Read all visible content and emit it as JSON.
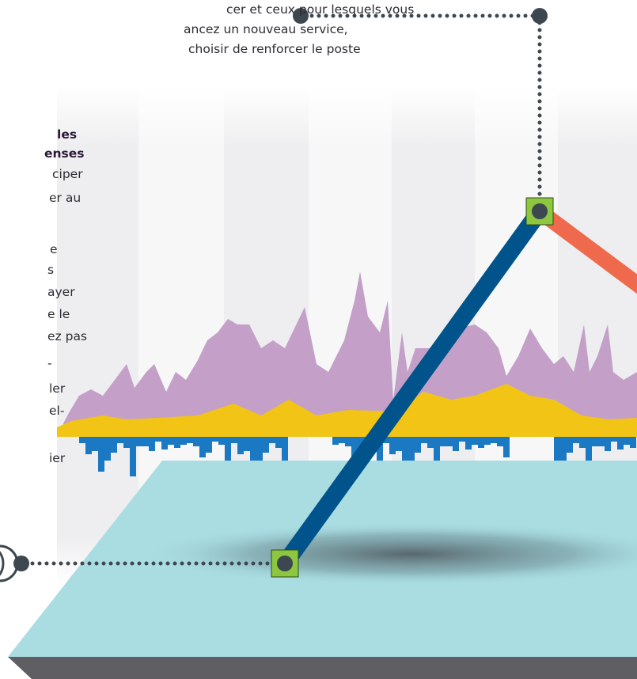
{
  "intro": {
    "lines": [
      "cer et ceux pour lesquels vous",
      "ancez un nouveau service,",
      "choisir de renforcer le poste"
    ]
  },
  "section": {
    "heading": [
      "les",
      "enses"
    ],
    "lines": [
      "ciper",
      "er au",
      "e",
      "s",
      "ayer",
      "e le",
      "ez pas",
      "-",
      "ler",
      "el-",
      "ier"
    ]
  }
}
